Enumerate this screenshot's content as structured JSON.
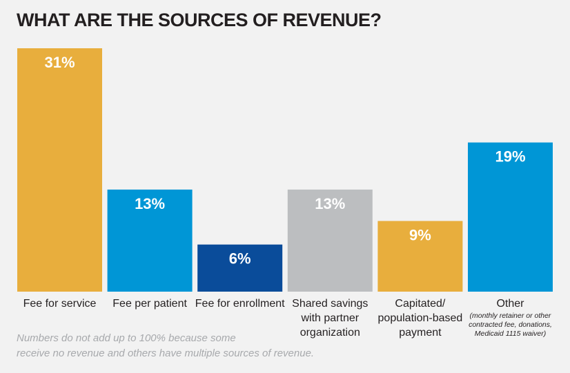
{
  "chart_data": {
    "type": "bar",
    "title": "WHAT ARE THE SOURCES OF REVENUE?",
    "unit": "%",
    "ylim": [
      0,
      31
    ],
    "grid": false,
    "categories": [
      {
        "lines": [
          "Fee for service"
        ],
        "note": [],
        "value": 31,
        "label": "31%",
        "color": "#e8ae3d"
      },
      {
        "lines": [
          "Fee per patient"
        ],
        "note": [],
        "value": 13,
        "label": "13%",
        "color": "#0096d6"
      },
      {
        "lines": [
          "Fee for enrollment"
        ],
        "note": [],
        "value": 6,
        "label": "6%",
        "color": "#0a4c9a"
      },
      {
        "lines": [
          "Shared savings",
          "with partner",
          "organization"
        ],
        "note": [],
        "value": 13,
        "label": "13%",
        "color": "#bcbec0"
      },
      {
        "lines": [
          "Capitated/",
          "population-based",
          "payment"
        ],
        "note": [],
        "value": 9,
        "label": "9%",
        "color": "#e8ae3d"
      },
      {
        "lines": [
          "Other"
        ],
        "note": [
          "(monthly retainer or other",
          "contracted fee, donations,",
          "Medicaid 1115 waiver)"
        ],
        "value": 19,
        "label": "19%",
        "color": "#0096d6"
      }
    ]
  },
  "footnote": {
    "line1": "Numbers do not add up to 100% because some",
    "line2": "receive no revenue and others have multiple sources of revenue."
  }
}
